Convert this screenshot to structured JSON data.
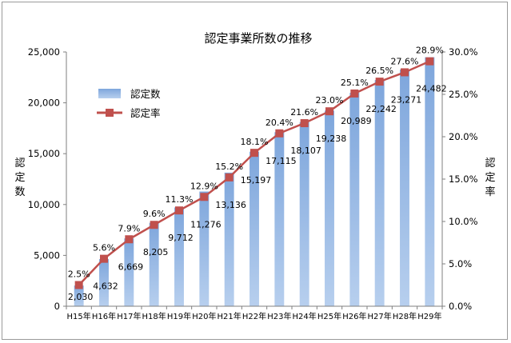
{
  "chart_data": {
    "type": "bar+line",
    "title": "認定事業所数の推移",
    "categories": [
      "H15年",
      "H16年",
      "H17年",
      "H18年",
      "H19年",
      "H20年",
      "H21年",
      "H22年",
      "H23年",
      "H24年",
      "H25年",
      "H26年",
      "H27年",
      "H28年",
      "H29年"
    ],
    "series": [
      {
        "name": "認定数",
        "type": "bar",
        "axis": "left",
        "color": "#8db3e2",
        "values": [
          2030,
          4632,
          6669,
          8205,
          9712,
          11276,
          13136,
          15197,
          17115,
          18107,
          19238,
          20989,
          22242,
          23271,
          24482
        ],
        "labels": [
          "2,030",
          "4,632",
          "6,669",
          "8,205",
          "9,712",
          "11,276",
          "13,136",
          "15,197",
          "17,115",
          "18,107",
          "19,238",
          "20,989",
          "22,242",
          "23,271",
          "24,482"
        ]
      },
      {
        "name": "認定率",
        "type": "line",
        "axis": "right",
        "color": "#c0504d",
        "values": [
          2.5,
          5.6,
          7.9,
          9.6,
          11.3,
          12.9,
          15.2,
          18.1,
          20.4,
          21.6,
          23.0,
          25.1,
          26.5,
          27.6,
          28.9
        ],
        "labels": [
          "2.5%",
          "5.6%",
          "7.9%",
          "9.6%",
          "11.3%",
          "12.9%",
          "15.2%",
          "18.1%",
          "20.4%",
          "21.6%",
          "23.0%",
          "25.1%",
          "26.5%",
          "27.6%",
          "28.9%"
        ]
      }
    ],
    "y_left": {
      "label": "認定数",
      "range": [
        0,
        25000
      ],
      "ticks": [
        0,
        5000,
        10000,
        15000,
        20000,
        25000
      ],
      "tick_labels": [
        "0",
        "5,000",
        "10,000",
        "15,000",
        "20,000",
        "25,000"
      ]
    },
    "y_right": {
      "label": "認定率",
      "range": [
        0,
        30
      ],
      "ticks": [
        0,
        5,
        10,
        15,
        20,
        25,
        30
      ],
      "tick_labels": [
        "0.0%",
        "5.0%",
        "10.0%",
        "15.0%",
        "20.0%",
        "25.0%",
        "30.0%"
      ]
    },
    "grid": false,
    "legend": "top-left"
  }
}
